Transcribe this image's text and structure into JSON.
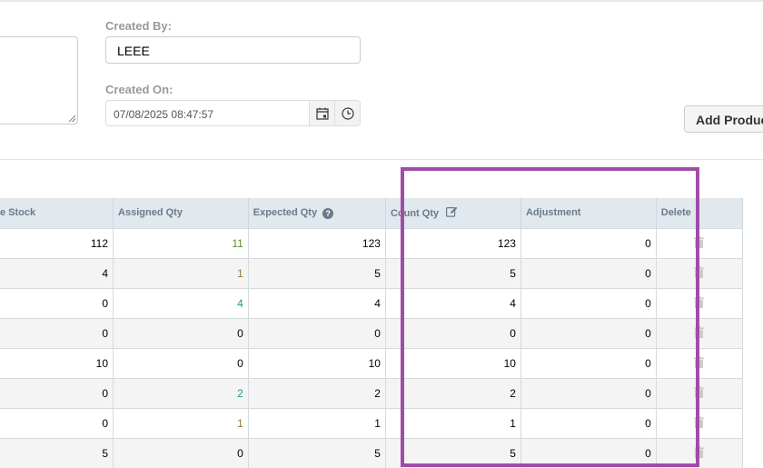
{
  "form": {
    "created_by_label": "Created By:",
    "created_by_value": "LEEE",
    "created_on_label": "Created On:",
    "created_on_value": "07/08/2025 08:47:57",
    "add_product_label": "Add Product"
  },
  "table": {
    "headers": [
      "e Stock",
      "Assigned Qty",
      "Expected Qty",
      "Count Qty",
      "Adjustment",
      "Delete"
    ],
    "rows": [
      {
        "stock": "112",
        "assigned": "11",
        "assigned_color": "#5a8a2a",
        "expected": "123",
        "count": "123",
        "adjustment": "0"
      },
      {
        "stock": "4",
        "assigned": "1",
        "assigned_color": "#8a7a2a",
        "expected": "5",
        "count": "5",
        "adjustment": "0"
      },
      {
        "stock": "0",
        "assigned": "4",
        "assigned_color": "#1a9a8a",
        "expected": "4",
        "count": "4",
        "adjustment": "0"
      },
      {
        "stock": "0",
        "assigned": "0",
        "assigned_color": "#000000",
        "expected": "0",
        "count": "0",
        "adjustment": "0"
      },
      {
        "stock": "10",
        "assigned": "0",
        "assigned_color": "#000000",
        "expected": "10",
        "count": "10",
        "adjustment": "0"
      },
      {
        "stock": "0",
        "assigned": "2",
        "assigned_color": "#1a9a8a",
        "expected": "2",
        "count": "2",
        "adjustment": "0"
      },
      {
        "stock": "0",
        "assigned": "1",
        "assigned_color": "#8a7a2a",
        "expected": "1",
        "count": "1",
        "adjustment": "0"
      },
      {
        "stock": "5",
        "assigned": "0",
        "assigned_color": "#000000",
        "expected": "5",
        "count": "5",
        "adjustment": "0"
      }
    ]
  },
  "highlight_color": "#a04ca8"
}
